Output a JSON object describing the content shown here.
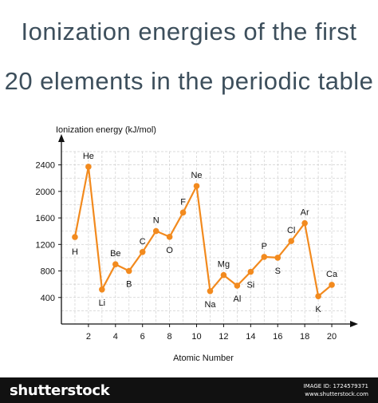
{
  "chart_data": {
    "type": "line",
    "title_line1": "Ionization energies of the first",
    "title_line2": "20 elements in the periodic table",
    "ylabel": "Ionization energy (kJ/mol)",
    "xlabel": "Atomic Number",
    "xlim": [
      0,
      21
    ],
    "ylim": [
      0,
      2600
    ],
    "x_ticks": [
      2,
      4,
      6,
      8,
      10,
      12,
      14,
      16,
      18,
      20
    ],
    "y_ticks": [
      400,
      800,
      1200,
      1600,
      2000,
      2400
    ],
    "grid": true,
    "line_color": "#f28a1e",
    "points": [
      {
        "x": 1,
        "y": 1312,
        "label": "H"
      },
      {
        "x": 2,
        "y": 2372,
        "label": "He"
      },
      {
        "x": 3,
        "y": 520,
        "label": "Li"
      },
      {
        "x": 4,
        "y": 900,
        "label": "Be"
      },
      {
        "x": 5,
        "y": 800,
        "label": "B"
      },
      {
        "x": 6,
        "y": 1086,
        "label": "C"
      },
      {
        "x": 7,
        "y": 1402,
        "label": "N"
      },
      {
        "x": 8,
        "y": 1314,
        "label": "O"
      },
      {
        "x": 9,
        "y": 1681,
        "label": "F"
      },
      {
        "x": 10,
        "y": 2081,
        "label": "Ne"
      },
      {
        "x": 11,
        "y": 496,
        "label": "Na"
      },
      {
        "x": 12,
        "y": 738,
        "label": "Mg"
      },
      {
        "x": 13,
        "y": 578,
        "label": "Al"
      },
      {
        "x": 14,
        "y": 787,
        "label": "Si"
      },
      {
        "x": 15,
        "y": 1012,
        "label": "P"
      },
      {
        "x": 16,
        "y": 1000,
        "label": "S"
      },
      {
        "x": 17,
        "y": 1251,
        "label": "Cl"
      },
      {
        "x": 18,
        "y": 1521,
        "label": "Ar"
      },
      {
        "x": 19,
        "y": 419,
        "label": "K"
      },
      {
        "x": 20,
        "y": 590,
        "label": "Ca"
      }
    ]
  },
  "footer": {
    "brand": "shutterstock",
    "image_id": "IMAGE ID: 1724579371",
    "site": "www.shutterstock.com"
  }
}
